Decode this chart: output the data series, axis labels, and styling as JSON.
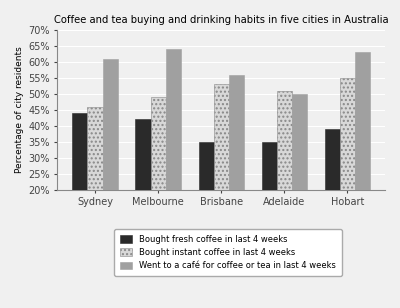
{
  "title": "Coffee and tea buying and drinking habits in five cities in Australia",
  "cities": [
    "Sydney",
    "Melbourne",
    "Brisbane",
    "Adelaide",
    "Hobart"
  ],
  "series": [
    {
      "label": "Bought fresh coffee in last 4 weeks",
      "values": [
        44,
        42,
        35,
        35,
        39
      ],
      "color": "#2a2a2a",
      "hatch": "",
      "edgecolor": "#2a2a2a"
    },
    {
      "label": "Bought instant coffee in last 4 weeks",
      "values": [
        46,
        49,
        53,
        51,
        55
      ],
      "color": "#d8d8d8",
      "hatch": "....",
      "edgecolor": "#888888"
    },
    {
      "label": "Went to a café for coffee or tea in last 4 weeks",
      "values": [
        61,
        64,
        56,
        50,
        63
      ],
      "color": "#a0a0a0",
      "hatch": "",
      "edgecolor": "#a0a0a0"
    }
  ],
  "ylabel": "Percentage of city residents",
  "ylim_min": 20,
  "ylim_max": 70,
  "yticks": [
    20,
    25,
    30,
    35,
    40,
    45,
    50,
    55,
    60,
    65,
    70
  ],
  "ytick_labels": [
    "20%",
    "25%",
    "30%",
    "35%",
    "40%",
    "45%",
    "50%",
    "55%",
    "60%",
    "65%",
    "70%"
  ],
  "background_color": "#f0f0f0",
  "plot_bg_color": "#f0f0f0",
  "grid_color": "#ffffff"
}
